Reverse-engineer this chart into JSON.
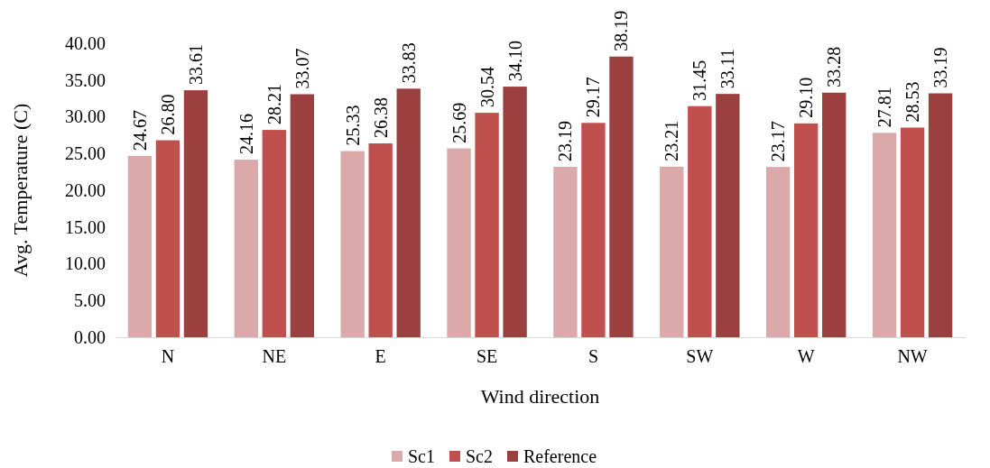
{
  "chart_data": {
    "type": "bar",
    "xlabel": "Wind direction",
    "ylabel": "Avg. Temperature (C)",
    "categories": [
      "N",
      "NE",
      "E",
      "SE",
      "S",
      "SW",
      "W",
      "NW"
    ],
    "series": [
      {
        "name": "Sc1",
        "color": "#dba9a9",
        "values": [
          24.67,
          24.16,
          25.33,
          25.69,
          23.19,
          23.21,
          23.17,
          27.81
        ],
        "value_labels": [
          "24.67",
          "24.16",
          "25.33",
          "25.69",
          "23.19",
          "23.21",
          "23.17",
          "27.81"
        ]
      },
      {
        "name": "Sc2",
        "color": "#c0504d",
        "values": [
          26.8,
          28.21,
          26.38,
          30.54,
          29.17,
          31.45,
          29.1,
          28.53
        ],
        "value_labels": [
          "26.80",
          "28.21",
          "26.38",
          "30.54",
          "29.17",
          "31.45",
          "29.10",
          "28.53"
        ]
      },
      {
        "name": "Reference",
        "color": "#9c3f3f",
        "values": [
          33.61,
          33.07,
          33.83,
          34.1,
          38.19,
          33.11,
          33.28,
          33.19
        ],
        "value_labels": [
          "33.61",
          "33.07",
          "33.83",
          "34.10",
          "38.19",
          "33.11",
          "33.28",
          "33.19"
        ]
      }
    ],
    "ylim": [
      0,
      40
    ],
    "yticks": [
      {
        "value": 0,
        "label": "0.00"
      },
      {
        "value": 5,
        "label": "5.00"
      },
      {
        "value": 10,
        "label": "10.00"
      },
      {
        "value": 15,
        "label": "15.00"
      },
      {
        "value": 20,
        "label": "20.00"
      },
      {
        "value": 25,
        "label": "25.00"
      },
      {
        "value": 30,
        "label": "30.00"
      },
      {
        "value": 35,
        "label": "35.00"
      },
      {
        "value": 40,
        "label": "40.00"
      }
    ],
    "legend": "bottom"
  }
}
